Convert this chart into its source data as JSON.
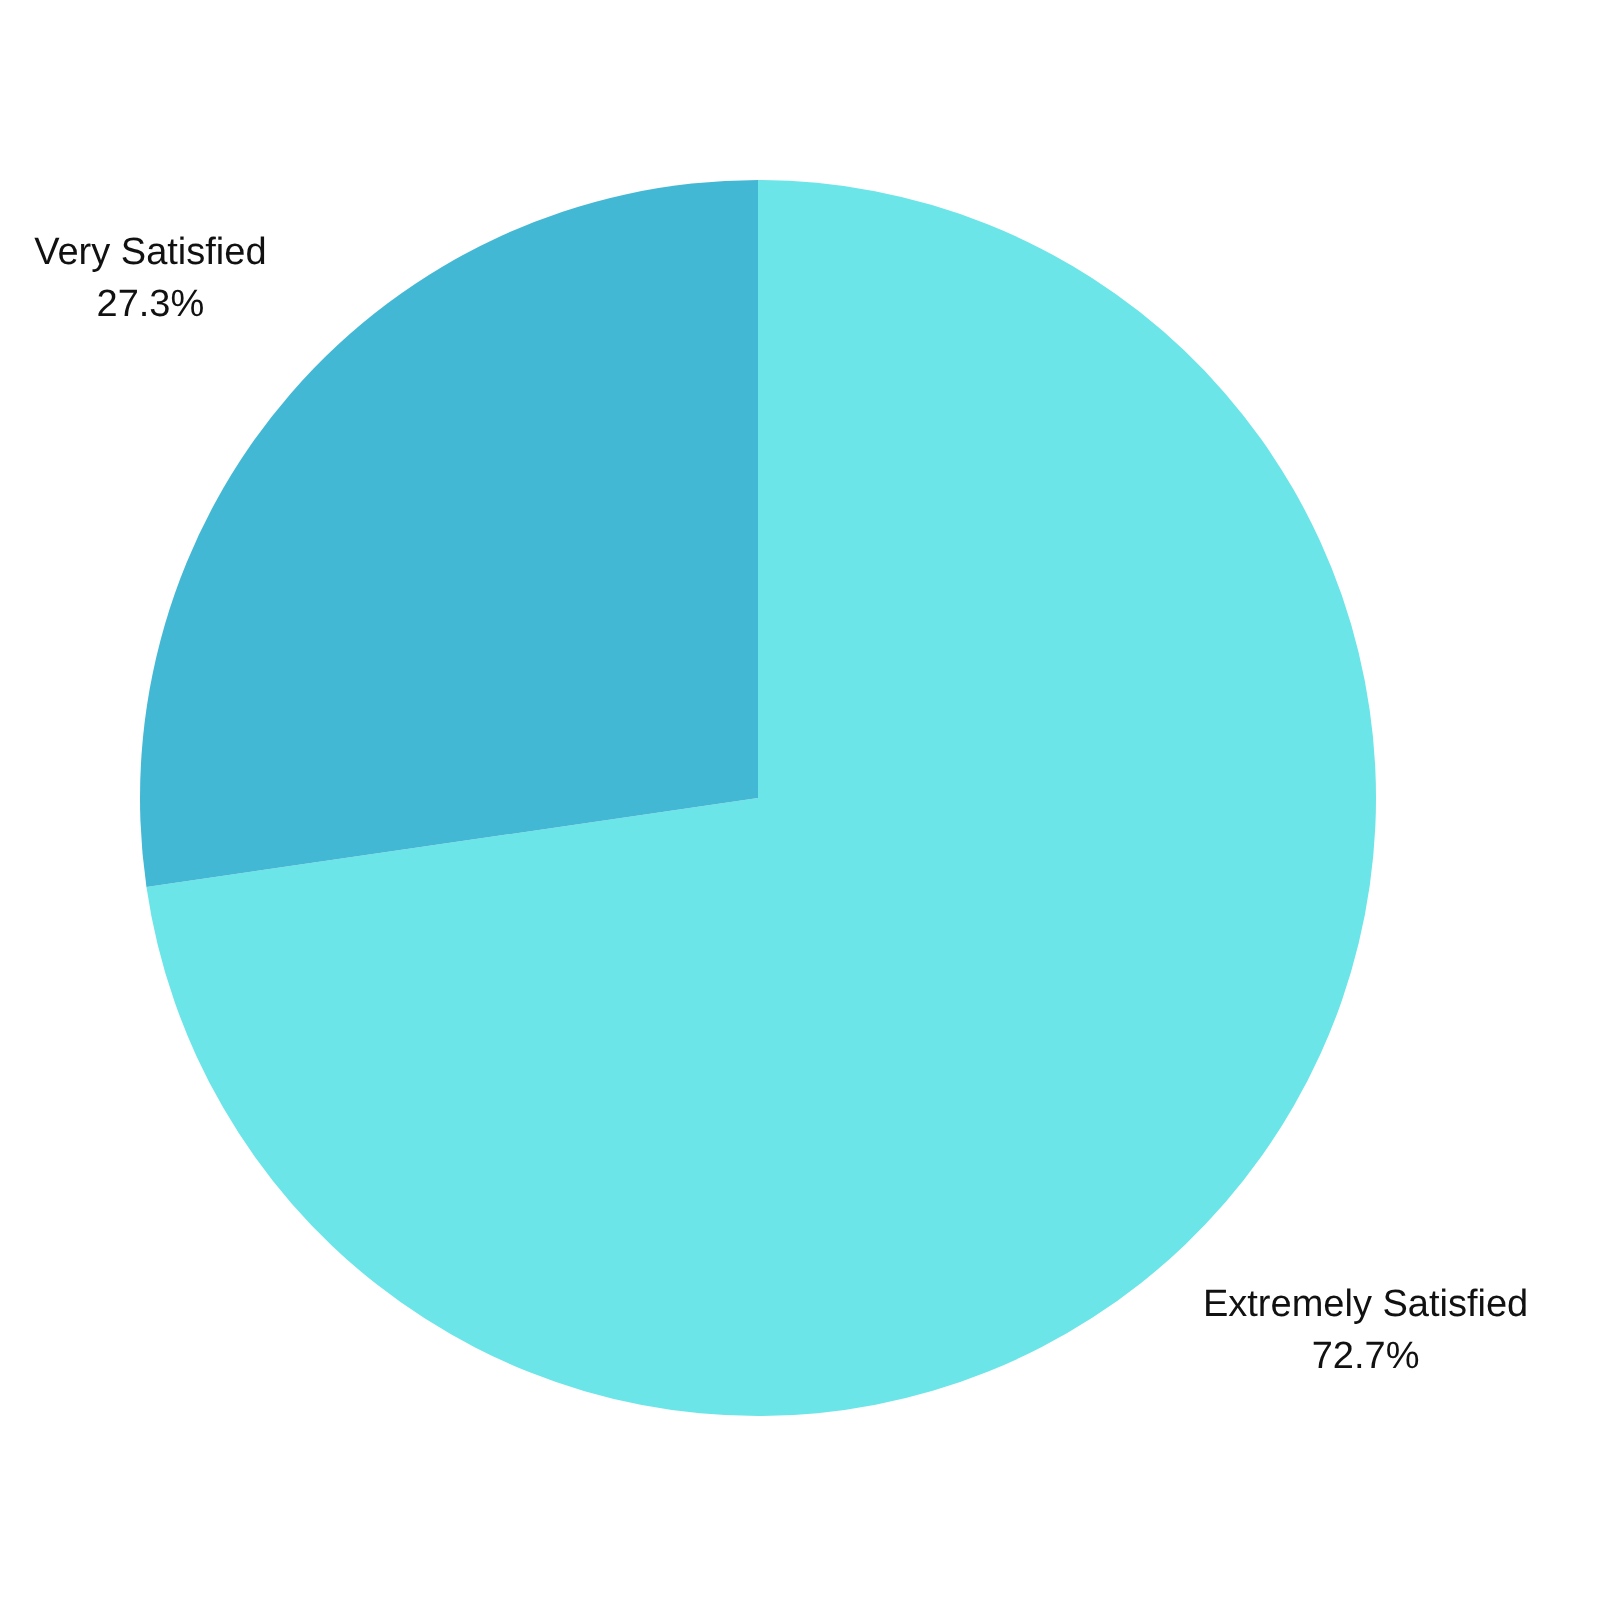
{
  "chart_data": {
    "type": "pie",
    "categories": [
      "Extremely Satisfied",
      "Very Satisfied"
    ],
    "values": [
      72.7,
      27.3
    ],
    "colors": [
      "#6be5e8",
      "#43b8d4"
    ],
    "value_labels": [
      "72.7%",
      "27.3%"
    ]
  }
}
